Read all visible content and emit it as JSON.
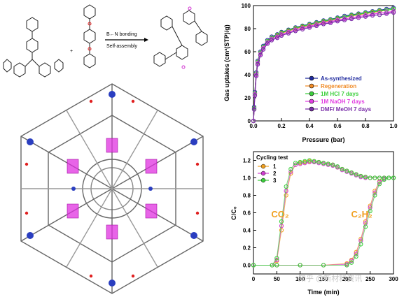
{
  "scheme": {
    "plus": "+",
    "arrow_label_top": "B←N bonding",
    "arrow_label_bottom": "Self-assembly"
  },
  "watermark": "知乎 @新材料资讯",
  "chart_data": [
    {
      "type": "line",
      "xlabel": "Pressure (bar)",
      "ylabel": "Gas uptakes (cm³(STP)/g)",
      "xlim": [
        0,
        1.0
      ],
      "ylim": [
        0,
        100
      ],
      "xticks": [
        "0.0",
        "0.2",
        "0.4",
        "0.6",
        "0.8",
        "1.0"
      ],
      "yticks": [
        "0",
        "20",
        "40",
        "60",
        "80",
        "100"
      ],
      "legend_position": "bottom-right",
      "x": [
        0.0,
        0.005,
        0.01,
        0.02,
        0.03,
        0.05,
        0.07,
        0.1,
        0.13,
        0.17,
        0.2,
        0.25,
        0.3,
        0.35,
        0.4,
        0.45,
        0.5,
        0.55,
        0.6,
        0.65,
        0.7,
        0.75,
        0.8,
        0.85,
        0.9,
        0.95,
        1.0
      ],
      "series": [
        {
          "name": "As-synthesized",
          "color": "#1f2a9e",
          "values": [
            0,
            12,
            25,
            42,
            52,
            60,
            65,
            70,
            73,
            75,
            77,
            79,
            81,
            82.5,
            84,
            85.5,
            87,
            88,
            89.5,
            91,
            92,
            93,
            94,
            95,
            96,
            97,
            98
          ]
        },
        {
          "name": "Regeneration",
          "color": "#f08a24",
          "values": [
            0,
            11,
            24,
            41,
            51,
            59,
            64,
            69,
            72,
            74,
            76,
            78,
            80,
            81.5,
            83,
            84.5,
            86,
            87,
            88.5,
            90,
            91,
            92,
            93,
            94,
            95,
            96,
            97
          ]
        },
        {
          "name": "1M HCl 7 days",
          "color": "#3ccf3c",
          "values": [
            0,
            11,
            24,
            41,
            51,
            59,
            64,
            69,
            72,
            74.5,
            76.5,
            78.5,
            80.5,
            82,
            83.5,
            85,
            86.5,
            87.5,
            89,
            90,
            91.5,
            92.5,
            93.5,
            94.5,
            95.5,
            96,
            97
          ]
        },
        {
          "name": "1M NaOH 7 days",
          "color": "#e23ee2",
          "values": [
            0,
            10,
            23,
            40,
            50,
            58,
            63,
            68,
            71,
            73,
            75,
            77,
            79,
            80.5,
            82,
            83.5,
            85,
            86,
            87.5,
            88.5,
            89.5,
            90.5,
            91.5,
            92.5,
            93.5,
            94,
            95
          ]
        },
        {
          "name": "DMF/ MeOH 7 days",
          "color": "#7a2ea8",
          "values": [
            0,
            10,
            22,
            39,
            49,
            57,
            62,
            67,
            70,
            72,
            74,
            76,
            78,
            79.5,
            81,
            82.5,
            84,
            85,
            86.5,
            87.5,
            88.5,
            89.5,
            90.5,
            91.5,
            92,
            93,
            94
          ]
        }
      ]
    },
    {
      "type": "scatter",
      "xlabel": "Time (min)",
      "ylabel": "C/C₀",
      "xlim": [
        0,
        300
      ],
      "ylim": [
        -0.1,
        1.3
      ],
      "xticks": [
        "0",
        "50",
        "100",
        "150",
        "200",
        "250",
        "300"
      ],
      "yticks": [
        "0.0",
        "0.2",
        "0.4",
        "0.6",
        "0.8",
        "1.0",
        "1.2"
      ],
      "legend_title": "Cycling test",
      "legend_position": "top-left",
      "annotations": [
        {
          "text": "CO₂",
          "color": "#f0a020",
          "x": 57,
          "y": 0.55
        },
        {
          "text": "C₂H₂",
          "color": "#f0a020",
          "x": 232,
          "y": 0.55
        }
      ],
      "series": [
        {
          "name": "1",
          "color": "#f0a020",
          "co2_x": [
            0,
            40,
            50,
            60,
            70,
            80,
            90,
            100,
            110,
            120,
            130,
            140,
            150,
            160,
            170,
            180,
            190,
            200,
            210,
            220,
            230,
            240,
            250,
            260,
            270,
            280,
            290,
            300
          ],
          "co2_y": [
            0,
            0,
            0.05,
            0.4,
            0.8,
            1.05,
            1.15,
            1.17,
            1.18,
            1.19,
            1.19,
            1.18,
            1.17,
            1.16,
            1.15,
            1.12,
            1.1,
            1.08,
            1.06,
            1.04,
            1.02,
            1.01,
            1.0,
            1.0,
            1.0,
            1.0,
            1.0,
            1.0
          ],
          "c2h2_x": [
            0,
            50,
            100,
            150,
            200,
            210,
            220,
            230,
            240,
            250,
            260,
            270,
            280,
            290,
            300
          ],
          "c2h2_y": [
            0,
            0,
            0,
            0,
            0.02,
            0.06,
            0.15,
            0.3,
            0.5,
            0.68,
            0.85,
            0.96,
            1.0,
            1.0,
            1.0
          ]
        },
        {
          "name": "2",
          "color": "#d03ed0",
          "co2_x": [
            0,
            40,
            50,
            60,
            70,
            80,
            90,
            100,
            110,
            120,
            130,
            140,
            150,
            160,
            170,
            180,
            190,
            200,
            210,
            220,
            230,
            240,
            250,
            260,
            270,
            280,
            290,
            300
          ],
          "co2_y": [
            0,
            0,
            0.06,
            0.45,
            0.85,
            1.07,
            1.15,
            1.16,
            1.17,
            1.18,
            1.18,
            1.17,
            1.16,
            1.15,
            1.14,
            1.12,
            1.09,
            1.07,
            1.05,
            1.03,
            1.01,
            1.0,
            1.0,
            1.0,
            1.0,
            1.0,
            1.0,
            1.0
          ],
          "c2h2_x": [
            0,
            50,
            100,
            150,
            200,
            210,
            220,
            230,
            240,
            250,
            260,
            270,
            280,
            290,
            300
          ],
          "c2h2_y": [
            0,
            0,
            0,
            0,
            0.01,
            0.05,
            0.13,
            0.28,
            0.48,
            0.66,
            0.83,
            0.95,
            0.99,
            1.0,
            1.0
          ]
        },
        {
          "name": "3",
          "color": "#3ccf3c",
          "co2_x": [
            0,
            40,
            50,
            60,
            70,
            80,
            90,
            100,
            110,
            120,
            130,
            140,
            150,
            160,
            170,
            180,
            190,
            200,
            210,
            220,
            230,
            240,
            250,
            260,
            270,
            280,
            290,
            300
          ],
          "co2_y": [
            0,
            0,
            0.08,
            0.5,
            0.9,
            1.1,
            1.17,
            1.18,
            1.19,
            1.2,
            1.19,
            1.18,
            1.17,
            1.16,
            1.15,
            1.13,
            1.1,
            1.08,
            1.06,
            1.04,
            1.02,
            1.01,
            1.0,
            1.0,
            1.0,
            1.0,
            1.0,
            1.0
          ],
          "c2h2_x": [
            0,
            50,
            100,
            150,
            200,
            210,
            220,
            230,
            240,
            250,
            260,
            270,
            280,
            290,
            300
          ],
          "c2h2_y": [
            0,
            0,
            0,
            0,
            0.0,
            0.03,
            0.1,
            0.24,
            0.44,
            0.62,
            0.8,
            0.93,
            0.98,
            1.0,
            1.0
          ]
        }
      ]
    }
  ]
}
